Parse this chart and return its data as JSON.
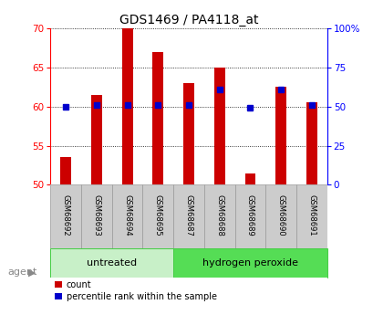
{
  "title": "GDS1469 / PA4118_at",
  "samples": [
    "GSM68692",
    "GSM68693",
    "GSM68694",
    "GSM68695",
    "GSM68687",
    "GSM68688",
    "GSM68689",
    "GSM68690",
    "GSM68691"
  ],
  "counts": [
    53.5,
    61.5,
    70.0,
    67.0,
    63.0,
    65.0,
    51.5,
    62.5,
    60.5
  ],
  "percentile_pct": [
    50,
    51,
    51,
    51,
    51,
    61,
    49,
    61,
    51
  ],
  "ylim_left": [
    50,
    70
  ],
  "ylim_right": [
    0,
    100
  ],
  "yticks_left": [
    50,
    55,
    60,
    65,
    70
  ],
  "yticks_right": [
    0,
    25,
    50,
    75,
    100
  ],
  "bar_color": "#CC0000",
  "dot_color": "#0000CC",
  "untreated_color_light": "#C8F0C8",
  "untreated_color_dark": "#55DD55",
  "sample_bg": "#CCCCCC",
  "sample_border": "#999999"
}
